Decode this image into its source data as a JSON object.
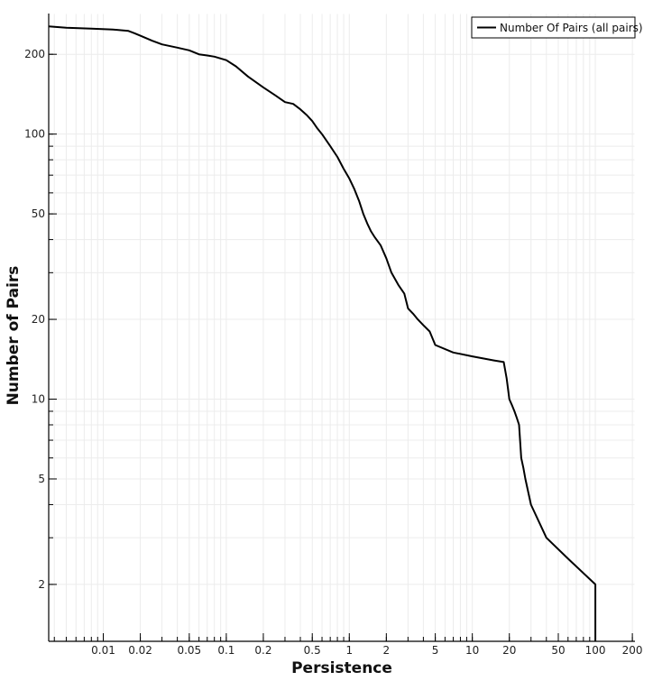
{
  "chart_data": {
    "type": "line",
    "title": "",
    "xlabel": "Persistence",
    "ylabel": "Number of Pairs",
    "x_scale": "log",
    "y_scale": "log",
    "xlim": [
      0.0036,
      210
    ],
    "ylim": [
      1.22,
      285
    ],
    "grid": true,
    "legend_position": "top-right",
    "x_tick_labels": [
      "0.01",
      "0.02",
      "0.05",
      "0.1",
      "0.2",
      "0.5",
      "1",
      "2",
      "5",
      "10",
      "20",
      "50",
      "100",
      "200"
    ],
    "y_tick_labels": [
      "2",
      "5",
      "10",
      "20",
      "50",
      "100",
      "200"
    ],
    "series": [
      {
        "name": "Number Of Pairs (all pairs)",
        "color": "#000000",
        "x": [
          0.0036,
          0.005,
          0.008,
          0.012,
          0.016,
          0.018,
          0.02,
          0.025,
          0.03,
          0.04,
          0.05,
          0.06,
          0.07,
          0.08,
          0.1,
          0.12,
          0.15,
          0.2,
          0.25,
          0.3,
          0.35,
          0.4,
          0.45,
          0.5,
          0.55,
          0.6,
          0.7,
          0.8,
          0.9,
          1.0,
          1.1,
          1.2,
          1.3,
          1.4,
          1.5,
          1.6,
          1.8,
          2.0,
          2.2,
          2.5,
          2.8,
          3.0,
          3.3,
          3.6,
          4.0,
          4.5,
          5.0,
          7.0,
          10,
          15,
          18,
          19,
          20,
          21,
          22,
          23,
          24,
          25,
          26,
          27,
          30,
          40,
          60,
          100,
          100
        ],
        "y": [
          255,
          252,
          250,
          248,
          245,
          240,
          235,
          225,
          218,
          212,
          207,
          200,
          198,
          196,
          190,
          180,
          165,
          150,
          140,
          132,
          130,
          124,
          118,
          112,
          105,
          100,
          90,
          82,
          74,
          68,
          62,
          56,
          50,
          46,
          43,
          41,
          38,
          34,
          30,
          27,
          25,
          22,
          21,
          20,
          19,
          18,
          16,
          15,
          14.5,
          14,
          13.8,
          12,
          10,
          9.5,
          9,
          8.5,
          8,
          6,
          5.5,
          5,
          4,
          3,
          2.5,
          2,
          1.22
        ]
      }
    ]
  }
}
